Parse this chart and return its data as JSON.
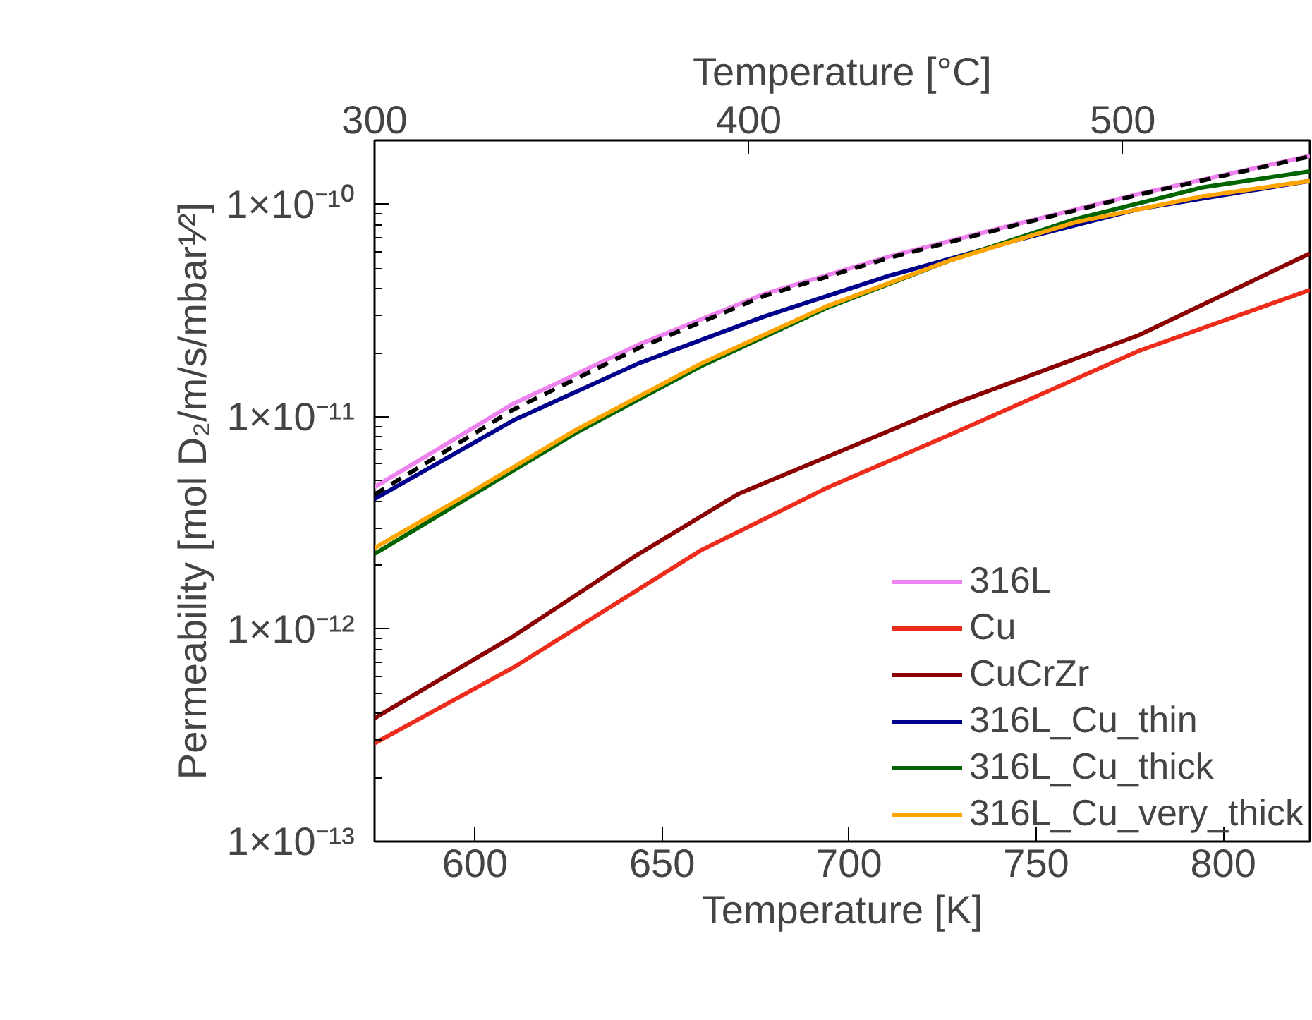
{
  "chart_data": {
    "type": "line",
    "xlabel": "Temperature [K]",
    "x2label": "Temperature [°C]",
    "ylabel": "Permeability [mol D₂/m/s/mbar¹⁄²]",
    "log": "y",
    "xlim": [
      573.15,
      823.15
    ],
    "xticks": [
      600,
      650,
      700,
      750,
      800
    ],
    "x2lim": [
      300,
      550
    ],
    "x2ticks": [
      300,
      400,
      500
    ],
    "ylim": [
      1e-13,
      2e-10
    ],
    "yticks": [
      {
        "value": 1e-13,
        "label": "1×10⁻¹³"
      },
      {
        "value": 1e-12,
        "label": "1×10⁻¹²"
      },
      {
        "value": 1e-11,
        "label": "1×10⁻¹¹"
      },
      {
        "value": 1e-10,
        "label": "1×10⁻¹⁰"
      }
    ],
    "grid": false,
    "legend": "bottom right",
    "line_style": "solid",
    "series": [
      {
        "name": "316L",
        "color": "#ee82ee",
        "x": [
          573.15,
          610.2,
          643.6,
          677.2,
          710.7,
          744.1,
          777.4,
          823.15
        ],
        "values": [
          4.66e-12,
          1.15e-11,
          2.18e-11,
          3.78e-11,
          5.68e-11,
          8.02e-11,
          1.12e-10,
          1.69e-10
        ]
      },
      {
        "name": "Cu",
        "color": "#ee2c1c",
        "x": [
          573.15,
          610.3,
          660.4,
          693.8,
          727.4,
          777.4,
          823.15
        ],
        "values": [
          2.9e-13,
          6.6e-13,
          2.35e-12,
          4.6e-12,
          8.3e-12,
          2.04e-11,
          3.95e-11
        ]
      },
      {
        "name": "CuCrZr",
        "color": "#8b0000",
        "x": [
          573.15,
          610.3,
          643.6,
          670.4,
          727.4,
          777.4,
          823.15
        ],
        "values": [
          3.81e-13,
          9.27e-13,
          2.25e-12,
          4.33e-12,
          1.14e-11,
          2.42e-11,
          5.87e-11
        ]
      },
      {
        "name": "316L_Cu_thin",
        "color": "#00008b",
        "x": [
          573.15,
          610.2,
          643.6,
          677.2,
          710.7,
          744.1,
          777.4,
          823.15
        ],
        "values": [
          4.1e-12,
          9.6e-12,
          1.78e-11,
          2.96e-11,
          4.61e-11,
          6.73e-11,
          9.5e-11,
          1.29e-10
        ]
      },
      {
        "name": "316L_Cu_thick",
        "color": "#006400",
        "x": [
          573.15,
          598.6,
          627.0,
          660.4,
          693.8,
          727.4,
          760.8,
          794.3,
          823.15
        ],
        "values": [
          2.26e-12,
          4.2e-12,
          8.4e-12,
          1.73e-11,
          3.24e-11,
          5.48e-11,
          8.55e-11,
          1.2e-10,
          1.43e-10
        ]
      },
      {
        "name": "316L_Cu_very_thick",
        "color": "#ffa500",
        "x": [
          573.15,
          598.6,
          627.0,
          660.4,
          693.8,
          727.4,
          760.8,
          794.3,
          823.15
        ],
        "values": [
          2.41e-12,
          4.37e-12,
          8.67e-12,
          1.78e-11,
          3.3e-11,
          5.48e-11,
          8.26e-11,
          1.09e-10,
          1.29e-10
        ]
      },
      {
        "color": "#000000",
        "line_style": "dashed",
        "x": [
          573.15,
          610.2,
          643.6,
          677.2,
          710.7,
          744.1,
          777.4,
          823.15
        ],
        "values": [
          4.3e-12,
          1.08e-11,
          2.1e-11,
          3.7e-11,
          5.6e-11,
          7.95e-11,
          1.11e-10,
          1.68e-10
        ]
      }
    ]
  }
}
